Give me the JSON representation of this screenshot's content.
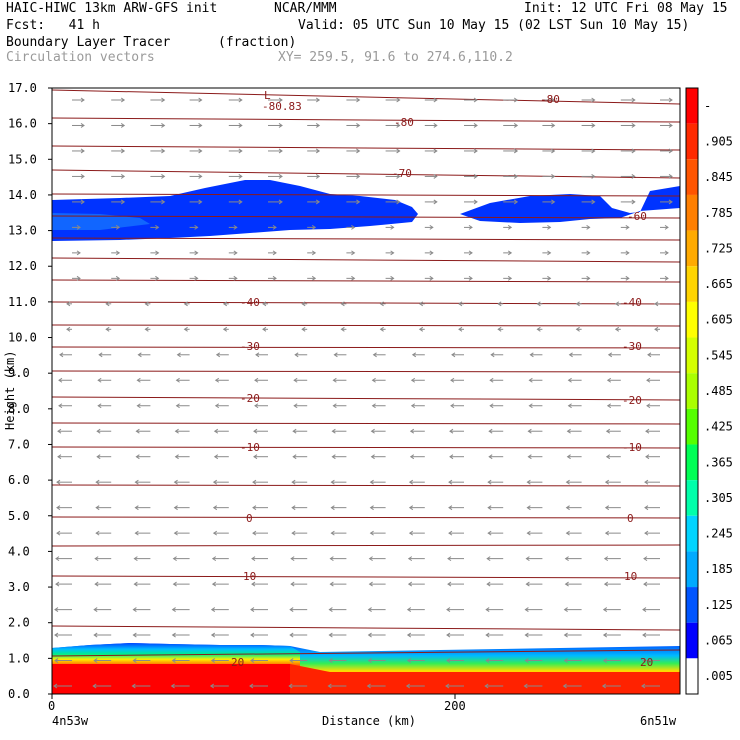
{
  "header": {
    "model": "HAIC-HIWC 13km ARW-GFS init",
    "org": "NCAR/MMM",
    "init": "Init: 12 UTC Fri 08 May 15",
    "fcst": "Fcst:   41 h",
    "valid": "Valid: 05 UTC Sun 10 May 15 (02 LST Sun 10 May 15)",
    "field": "Boundary Layer Tracer",
    "units": "(fraction)",
    "vectors": "Circulation vectors",
    "xy": "XY= 259.5, 91.6 to 274.6,110.2"
  },
  "chart_data": {
    "type": "cross-section",
    "field": "Boundary Layer Tracer",
    "units": "fraction",
    "ylabel": "Height (km)",
    "xlabel": "Distance (km)",
    "ylim": [
      0,
      17
    ],
    "yticks": [
      "0.0",
      "1.0",
      "2.0",
      "3.0",
      "4.0",
      "5.0",
      "6.0",
      "7.0",
      "8.0",
      "9.0",
      "10.0",
      "11.0",
      "12.0",
      "13.0",
      "14.0",
      "15.0",
      "16.0",
      "17.0"
    ],
    "xlim": [
      0,
      310
    ],
    "xticks": [
      {
        "x": 0,
        "label": "0"
      },
      {
        "x": 200,
        "label": "200"
      }
    ],
    "endpoint_labels": {
      "left": "4n53w",
      "right": "6n51w"
    },
    "temperature_contour_labels": [
      "-80.83",
      "-80",
      "-80",
      "-70",
      "-60",
      "-40",
      "-40",
      "-30",
      "-30",
      "-20",
      "-20",
      "-10",
      "-10",
      "0",
      "0",
      "10",
      "10",
      "20",
      "20"
    ],
    "low_marker": "L",
    "colorbar": {
      "labels": [
        "-",
        ".905",
        ".845",
        ".785",
        ".725",
        ".665",
        ".605",
        ".545",
        ".485",
        ".425",
        ".365",
        ".305",
        ".245",
        ".185",
        ".125",
        ".065",
        ".005"
      ],
      "colors": [
        "#ff0000",
        "#ff2a00",
        "#ff5500",
        "#ff7f00",
        "#ffaa00",
        "#ffd400",
        "#ffff00",
        "#d4ff00",
        "#aaff00",
        "#55ff00",
        "#00ff55",
        "#00ffaa",
        "#00d4ff",
        "#00aaff",
        "#0055ff",
        "#0000ff",
        "#ffffff"
      ]
    },
    "tracer_layers": [
      {
        "name": "upper-tracer-layer",
        "color": "#0044ff",
        "km_range": [
          12.8,
          14.4
        ]
      },
      {
        "name": "boundary-layer",
        "color": "#ff0000",
        "km_range": [
          0.0,
          1.4
        ]
      }
    ]
  }
}
